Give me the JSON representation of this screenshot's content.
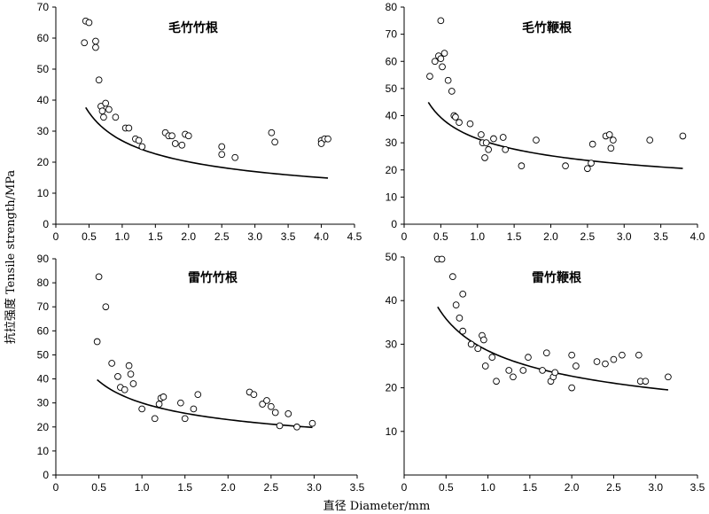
{
  "figure": {
    "ylabel": "抗拉强度 Tensile strength/MPa",
    "xlabel": "直径 Diameter/mm"
  },
  "chart_data": [
    {
      "type": "scatter",
      "title": "毛竹竹根",
      "xlim": [
        0,
        4.5
      ],
      "ylim": [
        0,
        70
      ],
      "xticks": [
        "0",
        "0.5",
        "1.0",
        "1.5",
        "2.0",
        "2.5",
        "3.0",
        "3.5",
        "4.0",
        "4.5"
      ],
      "yticks": [
        "0",
        "10",
        "20",
        "30",
        "40",
        "50",
        "60",
        "70"
      ],
      "fit": {
        "a": 26.9,
        "b": -0.42,
        "x_range": [
          0.45,
          4.1
        ]
      },
      "points": [
        [
          0.45,
          65.5
        ],
        [
          0.5,
          65.0
        ],
        [
          0.43,
          58.5
        ],
        [
          0.6,
          59.0
        ],
        [
          0.6,
          57.0
        ],
        [
          0.65,
          46.5
        ],
        [
          0.68,
          38.0
        ],
        [
          0.7,
          36.5
        ],
        [
          0.72,
          34.5
        ],
        [
          0.75,
          39.0
        ],
        [
          0.8,
          37.0
        ],
        [
          0.9,
          34.5
        ],
        [
          1.05,
          31.0
        ],
        [
          1.1,
          31.0
        ],
        [
          1.2,
          27.5
        ],
        [
          1.25,
          27.0
        ],
        [
          1.3,
          25.0
        ],
        [
          1.65,
          29.5
        ],
        [
          1.7,
          28.5
        ],
        [
          1.75,
          28.5
        ],
        [
          1.8,
          26.0
        ],
        [
          1.9,
          25.5
        ],
        [
          1.95,
          29.0
        ],
        [
          2.0,
          28.5
        ],
        [
          2.5,
          25.0
        ],
        [
          2.5,
          22.5
        ],
        [
          2.7,
          21.5
        ],
        [
          3.25,
          29.5
        ],
        [
          3.3,
          26.5
        ],
        [
          4.0,
          27.0
        ],
        [
          4.05,
          27.5
        ],
        [
          4.1,
          27.5
        ],
        [
          4.0,
          26.0
        ]
      ]
    },
    {
      "type": "scatter",
      "title": "毛竹鞭根",
      "xlim": [
        0,
        4.0
      ],
      "ylim": [
        0,
        80
      ],
      "xticks": [
        "0",
        "0.5",
        "1.0",
        "1.5",
        "2.0",
        "2.5",
        "3.0",
        "3.5",
        "4.0"
      ],
      "yticks": [
        "0",
        "10",
        "20",
        "30",
        "40",
        "50",
        "60",
        "70",
        "80"
      ],
      "fit": {
        "a": 31.5,
        "b": -0.32,
        "x_range": [
          0.33,
          3.8
        ]
      },
      "points": [
        [
          0.35,
          54.5
        ],
        [
          0.42,
          60.0
        ],
        [
          0.47,
          62.0
        ],
        [
          0.5,
          75.0
        ],
        [
          0.5,
          61.0
        ],
        [
          0.52,
          58.0
        ],
        [
          0.55,
          63.0
        ],
        [
          0.6,
          53.0
        ],
        [
          0.65,
          49.0
        ],
        [
          0.68,
          40.0
        ],
        [
          0.7,
          39.5
        ],
        [
          0.75,
          37.5
        ],
        [
          0.9,
          37.0
        ],
        [
          1.05,
          33.0
        ],
        [
          1.07,
          30.0
        ],
        [
          1.1,
          24.5
        ],
        [
          1.12,
          30.0
        ],
        [
          1.15,
          27.5
        ],
        [
          1.22,
          31.5
        ],
        [
          1.35,
          32.0
        ],
        [
          1.38,
          27.5
        ],
        [
          1.6,
          21.5
        ],
        [
          1.8,
          31.0
        ],
        [
          2.2,
          21.5
        ],
        [
          2.5,
          20.5
        ],
        [
          2.55,
          22.5
        ],
        [
          2.57,
          29.5
        ],
        [
          2.75,
          32.5
        ],
        [
          2.8,
          33.0
        ],
        [
          2.82,
          28.0
        ],
        [
          2.85,
          31.0
        ],
        [
          3.35,
          31.0
        ],
        [
          3.8,
          32.5
        ]
      ]
    },
    {
      "type": "scatter",
      "title": "雷竹竹根",
      "xlim": [
        0,
        3.5
      ],
      "ylim": [
        0,
        90
      ],
      "xticks": [
        "0",
        "0.5",
        "1.0",
        "1.5",
        "2.0",
        "2.5",
        "3.0",
        "3.5"
      ],
      "yticks": [
        "0",
        "10",
        "20",
        "30",
        "40",
        "50",
        "60",
        "70",
        "80",
        "90"
      ],
      "fit": {
        "a": 30.0,
        "b": -0.38,
        "x_range": [
          0.48,
          2.98
        ]
      },
      "points": [
        [
          0.5,
          82.5
        ],
        [
          0.58,
          70.0
        ],
        [
          0.48,
          55.5
        ],
        [
          0.65,
          46.5
        ],
        [
          0.72,
          41.0
        ],
        [
          0.75,
          36.5
        ],
        [
          0.8,
          35.5
        ],
        [
          0.85,
          45.5
        ],
        [
          0.87,
          42.0
        ],
        [
          0.9,
          38.0
        ],
        [
          1.0,
          27.5
        ],
        [
          1.15,
          23.5
        ],
        [
          1.2,
          29.5
        ],
        [
          1.22,
          32.0
        ],
        [
          1.25,
          32.5
        ],
        [
          1.45,
          30.0
        ],
        [
          1.5,
          23.5
        ],
        [
          1.6,
          27.5
        ],
        [
          1.65,
          33.5
        ],
        [
          2.25,
          34.5
        ],
        [
          2.3,
          33.5
        ],
        [
          2.4,
          29.5
        ],
        [
          2.45,
          31.0
        ],
        [
          2.5,
          28.5
        ],
        [
          2.55,
          26.0
        ],
        [
          2.6,
          20.5
        ],
        [
          2.7,
          25.5
        ],
        [
          2.8,
          20.0
        ],
        [
          2.98,
          21.5
        ]
      ]
    },
    {
      "type": "scatter",
      "title": "雷竹鞭根",
      "xlim": [
        0,
        3.5
      ],
      "ylim": [
        0,
        50
      ],
      "xticks": [
        "0",
        "0.5",
        "1.0",
        "1.5",
        "2.0",
        "2.5",
        "3.0",
        "3.5"
      ],
      "yticks": [
        "10",
        "20",
        "30",
        "40",
        "50"
      ],
      "fit": {
        "a": 28.5,
        "b": -0.33,
        "x_range": [
          0.4,
          3.15
        ]
      },
      "points": [
        [
          0.4,
          49.5
        ],
        [
          0.45,
          49.5
        ],
        [
          0.58,
          45.5
        ],
        [
          0.62,
          39.0
        ],
        [
          0.66,
          36.0
        ],
        [
          0.7,
          41.5
        ],
        [
          0.7,
          33.0
        ],
        [
          0.8,
          30.0
        ],
        [
          0.88,
          29.0
        ],
        [
          0.93,
          32.0
        ],
        [
          0.95,
          31.0
        ],
        [
          0.97,
          25.0
        ],
        [
          1.05,
          27.0
        ],
        [
          1.1,
          21.5
        ],
        [
          1.25,
          24.0
        ],
        [
          1.3,
          22.5
        ],
        [
          1.42,
          24.0
        ],
        [
          1.48,
          27.0
        ],
        [
          1.65,
          24.0
        ],
        [
          1.7,
          28.0
        ],
        [
          1.75,
          21.5
        ],
        [
          1.78,
          22.5
        ],
        [
          1.8,
          23.5
        ],
        [
          2.0,
          27.5
        ],
        [
          2.0,
          20.0
        ],
        [
          2.05,
          25.0
        ],
        [
          2.3,
          26.0
        ],
        [
          2.4,
          25.5
        ],
        [
          2.5,
          26.5
        ],
        [
          2.6,
          27.5
        ],
        [
          2.8,
          27.5
        ],
        [
          2.82,
          21.5
        ],
        [
          2.88,
          21.5
        ],
        [
          3.15,
          22.5
        ]
      ]
    }
  ]
}
